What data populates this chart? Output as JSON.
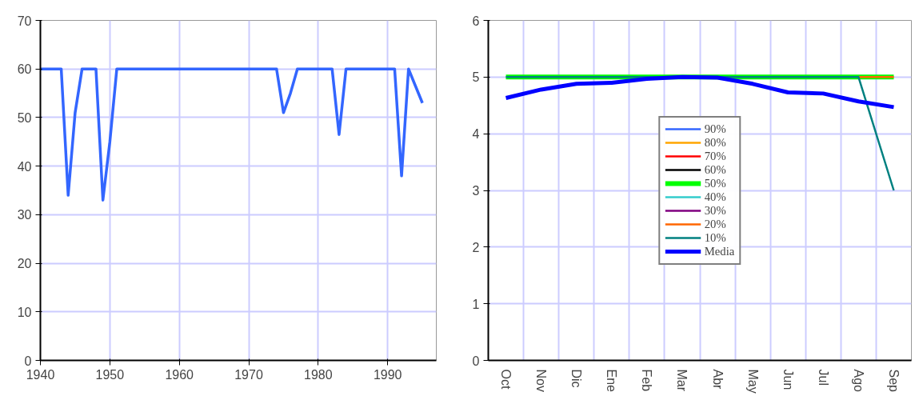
{
  "chart_data": [
    {
      "type": "line",
      "x": [
        1940,
        1943,
        1944,
        1945,
        1946,
        1948,
        1949,
        1950,
        1951,
        1974,
        1975,
        1976,
        1977,
        1982,
        1983,
        1984,
        1991,
        1992,
        1993,
        1994,
        1995
      ],
      "series": [
        {
          "color": "#3366ff",
          "values": [
            60,
            60,
            34,
            51,
            60,
            60,
            33,
            45,
            60,
            60,
            51,
            55,
            60,
            60,
            46.5,
            60,
            60,
            38,
            60,
            56.5,
            53
          ]
        }
      ],
      "xlim": [
        1940,
        1997
      ],
      "xticks": [
        1940,
        1950,
        1960,
        1970,
        1980,
        1990
      ],
      "ylim": [
        0,
        70
      ],
      "yticks": [
        0,
        10,
        20,
        30,
        40,
        50,
        60,
        70
      ],
      "grid": true,
      "legend": false,
      "marker": "none",
      "line_style": "solid"
    },
    {
      "type": "line",
      "categories": [
        "Oct",
        "Nov",
        "Dic",
        "Ene",
        "Feb",
        "Mar",
        "Abr",
        "May",
        "Jun",
        "Jul",
        "Ago",
        "Sep"
      ],
      "series": [
        {
          "name": "90%",
          "color": "#3366ff",
          "values": [
            null,
            null,
            null,
            null,
            null,
            null,
            null,
            null,
            null,
            null,
            null,
            null
          ]
        },
        {
          "name": "80%",
          "color": "#ffa500",
          "values": [
            null,
            null,
            null,
            null,
            null,
            null,
            null,
            null,
            null,
            null,
            null,
            null
          ]
        },
        {
          "name": "70%",
          "color": "#ff0000",
          "values": [
            null,
            null,
            null,
            null,
            null,
            null,
            null,
            null,
            null,
            null,
            null,
            null
          ]
        },
        {
          "name": "60%",
          "color": "#000000",
          "values": [
            null,
            null,
            null,
            null,
            null,
            null,
            null,
            null,
            null,
            null,
            null,
            null
          ]
        },
        {
          "name": "50%",
          "color": "#00ff00",
          "values": [
            5,
            5,
            5,
            5,
            5,
            5,
            5,
            5,
            5,
            5,
            5,
            5
          ]
        },
        {
          "name": "40%",
          "color": "#33cccc",
          "values": [
            null,
            null,
            null,
            null,
            null,
            null,
            null,
            null,
            null,
            null,
            null,
            null
          ]
        },
        {
          "name": "30%",
          "color": "#800080",
          "values": [
            null,
            null,
            null,
            null,
            null,
            null,
            null,
            null,
            null,
            null,
            null,
            null
          ]
        },
        {
          "name": "20%",
          "color": "#ff6600",
          "values": [
            null,
            null,
            null,
            null,
            null,
            null,
            null,
            null,
            null,
            null,
            5,
            5
          ]
        },
        {
          "name": "10%",
          "color": "#008080",
          "values": [
            5,
            5,
            5,
            5,
            5,
            5,
            5,
            5,
            5,
            5,
            5,
            3
          ]
        },
        {
          "name": "Media",
          "color": "#0000ff",
          "values": [
            4.63,
            4.78,
            4.88,
            4.9,
            4.97,
            5.0,
            4.99,
            4.88,
            4.73,
            4.71,
            4.57,
            4.47
          ]
        }
      ],
      "ylim": [
        0,
        6
      ],
      "yticks": [
        0,
        1,
        2,
        3,
        4,
        5,
        6
      ],
      "grid": true,
      "legend": "center",
      "marker": "none",
      "line_style": "solid"
    }
  ]
}
